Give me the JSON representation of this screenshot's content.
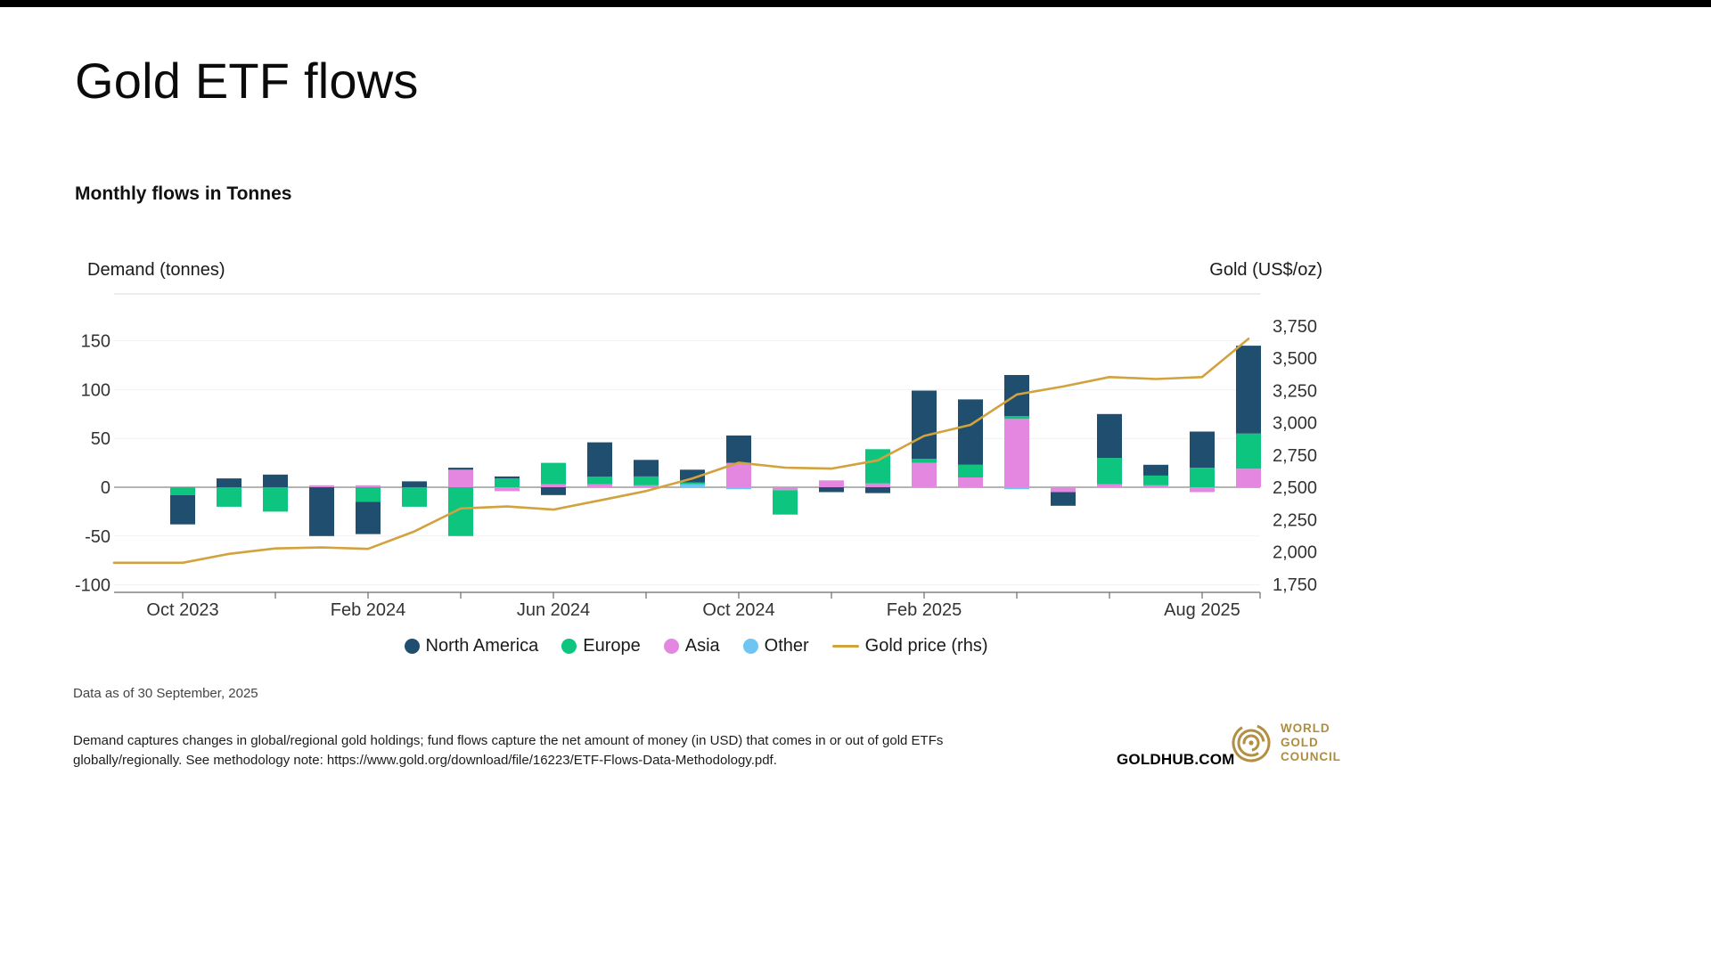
{
  "page": {
    "title": "Gold ETF flows",
    "subtitle": "Monthly flows in Tonnes",
    "data_as_of": "Data as of 30 September, 2025",
    "methodology_lines": [
      "Demand captures changes in global/regional gold holdings; fund flows capture the net amount of money (in USD) that comes in or out of gold ETFs",
      "globally/regionally. See methodology note: https://www.gold.org/download/file/16223/ETF-Flows-Data-Methodology.pdf."
    ],
    "brand": "GOLDHUB.COM",
    "logo_lines": [
      "WORLD",
      "GOLD",
      "COUNCIL"
    ],
    "logo_color": "#AE8D3E"
  },
  "chart_data": {
    "type": "bar",
    "subtype": "stacked-columns-with-line-overlay",
    "title": "Monthly flows in Tonnes",
    "categories": [
      "Oct 2023",
      "Nov 2023",
      "Dec 2023",
      "Jan 2024",
      "Feb 2024",
      "Mar 2024",
      "Apr 2024",
      "May 2024",
      "Jun 2024",
      "Jul 2024",
      "Aug 2024",
      "Sep 2024",
      "Oct 2024",
      "Nov 2024",
      "Dec 2024",
      "Jan 2025",
      "Feb 2025",
      "Mar 2025",
      "Apr 2025",
      "May 2025",
      "Jun 2025",
      "Jul 2025",
      "Aug 2025",
      "Sep 2025"
    ],
    "series": [
      {
        "name": "North America",
        "color": "#1F4E6E",
        "values": [
          -30,
          9,
          13,
          -50,
          -33,
          6,
          2,
          2,
          -8,
          35,
          17,
          13,
          28,
          0,
          -5,
          -6,
          70,
          67,
          42,
          -14,
          45,
          11,
          37,
          90
        ]
      },
      {
        "name": "Europe",
        "color": "#0DC57F",
        "values": [
          -8,
          -20,
          -25,
          0,
          -15,
          -20,
          -50,
          9,
          22,
          8,
          9,
          2,
          0,
          -25,
          0,
          35,
          4,
          13,
          3,
          0,
          27,
          10,
          20,
          36
        ]
      },
      {
        "name": "Asia",
        "color": "#E487E1",
        "values": [
          0,
          0,
          0,
          2,
          2,
          0,
          18,
          -4,
          3,
          3,
          2,
          0,
          25,
          -3,
          7,
          4,
          25,
          10,
          70,
          -5,
          3,
          2,
          -5,
          19
        ]
      },
      {
        "name": "Other",
        "color": "#6EC5F2",
        "values": [
          0,
          0,
          0,
          0,
          0,
          0,
          0,
          0,
          0,
          0,
          0,
          3,
          -2,
          0,
          0,
          0,
          0,
          0,
          -2,
          0,
          0,
          0,
          0,
          0
        ]
      }
    ],
    "line_series": {
      "name": "Gold price (rhs)",
      "color": "#D2A23E",
      "values": [
        1915,
        1984,
        2026,
        2034,
        2023,
        2158,
        2336,
        2351,
        2327,
        2398,
        2470,
        2568,
        2690,
        2652,
        2644,
        2708,
        2897,
        2983,
        3218,
        3280,
        3353,
        3338,
        3353,
        3650
      ]
    },
    "left_axis": {
      "label": "Demand (tonnes)",
      "ticks": [
        150,
        100,
        50,
        0,
        -50,
        -100
      ],
      "range": [
        -108,
        198
      ]
    },
    "right_axis": {
      "label": "Gold (US$/oz)",
      "ticks": [
        3750,
        3500,
        3250,
        3000,
        2750,
        2500,
        2250,
        2000,
        1750
      ],
      "range": [
        1600,
        3770
      ]
    },
    "x_axis": {
      "labeled_ticks": [
        {
          "index": 0,
          "label": "Oct 2023"
        },
        {
          "index": 4,
          "label": "Feb 2024"
        },
        {
          "index": 8,
          "label": "Jun 2024"
        },
        {
          "index": 12,
          "label": "Oct 2024"
        },
        {
          "index": 16,
          "label": "Feb 2025"
        },
        {
          "index": 22,
          "label": "Aug 2025"
        }
      ]
    },
    "legend_order": [
      "North America",
      "Europe",
      "Asia",
      "Other",
      "Gold price (rhs)"
    ],
    "grid": "horizontal-faint, zero-line emphasized",
    "legend_position": "bottom-center"
  }
}
